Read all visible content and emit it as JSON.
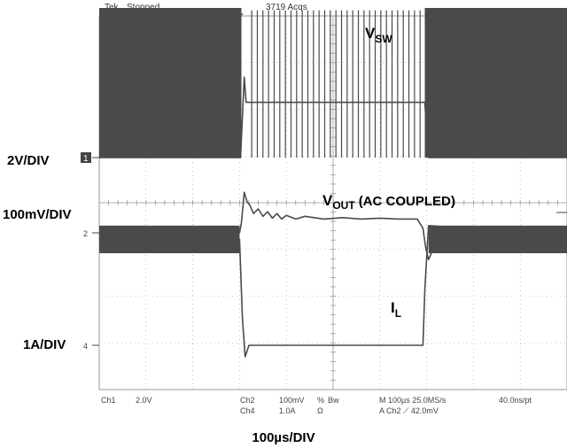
{
  "status_bar": {
    "brand": "Tek",
    "run_state": "Stopped",
    "acquisitions": "3719 Acqs"
  },
  "readout": {
    "ch1": "Ch1",
    "ch1_scale": "2.0V",
    "ch2": "Ch2",
    "ch2_scale": "100mV",
    "ch2_coupling": "%",
    "bw": "Bw",
    "ch4": "Ch4",
    "ch4_scale": "1.0A",
    "ch4_coupling": "Ω",
    "timebase": "M 100µs 25.0MS/s",
    "trigger": "A  Ch2  ⟋  42.0mV",
    "resolution": "40.0ns/pt"
  },
  "chart_data": {
    "type": "line",
    "title": "",
    "xlabel": "100µs/DIV",
    "ylabel": "",
    "x_range_us": [
      0,
      500
    ],
    "grid": true,
    "colors": {
      "trace": "#4a4a4a",
      "grid": "#9a9a9a",
      "background": "#ffffff"
    },
    "series": [
      {
        "name": "VSW",
        "label_main": "V",
        "label_sub": "SW",
        "scale_label": "2V/DIV",
        "marker": "1",
        "unit": "V",
        "t_us": [
          0,
          151,
          155,
          157,
          158,
          348,
          352,
          500
        ],
        "y": [
          0,
          0,
          3.5,
          2.4,
          2.4,
          2.4,
          0,
          0
        ],
        "band_high": 6.5,
        "band_low": 0,
        "band_intervals_us": [
          [
            0,
            152
          ],
          [
            348,
            500
          ]
        ],
        "pulse_times_us": [
          163,
          169,
          175,
          181,
          187,
          193,
          199,
          205,
          211,
          217,
          223,
          229,
          235,
          241,
          247,
          253,
          259,
          265,
          271,
          277,
          283,
          289,
          295,
          301,
          307,
          313,
          319,
          325,
          331,
          337,
          343
        ],
        "pulse_high": 6.4,
        "pulse_low": 0
      },
      {
        "name": "VOUT",
        "label_main": "V",
        "label_sub": "OUT",
        "label_suffix": "(AC COUPLED)",
        "scale_label": "100mV/DIV",
        "marker": "2",
        "unit": "mV",
        "t_us": [
          0,
          150,
          152,
          155,
          158,
          161,
          165,
          170,
          175,
          180,
          185,
          190,
          195,
          200,
          210,
          220,
          240,
          260,
          280,
          300,
          320,
          340,
          346,
          349,
          352,
          356,
          360,
          365,
          370,
          376,
          382,
          390,
          400,
          420,
          450,
          500
        ],
        "y": [
          0,
          0,
          22,
          88,
          68,
          60,
          42,
          52,
          36,
          46,
          32,
          42,
          30,
          38,
          30,
          36,
          30,
          33,
          30,
          32,
          30,
          30,
          10,
          -32,
          -58,
          -40,
          -18,
          -30,
          -8,
          -22,
          -4,
          -10,
          0,
          -2,
          0,
          0
        ],
        "band_high": null,
        "band_low": null
      },
      {
        "name": "IL",
        "label_main": "I",
        "label_sub": "L",
        "scale_label": "1A/DIV",
        "marker": "4",
        "unit": "A",
        "t_us": [
          0,
          150,
          153,
          156,
          160,
          346,
          348,
          352,
          500
        ],
        "y": [
          2.3,
          2.3,
          0.6,
          -0.25,
          0,
          0,
          1.2,
          2.6,
          2.4
        ],
        "band_high": 2.6,
        "band_low": 2.0,
        "band_intervals_us": [
          [
            0,
            150
          ],
          [
            352,
            500
          ]
        ]
      }
    ]
  }
}
